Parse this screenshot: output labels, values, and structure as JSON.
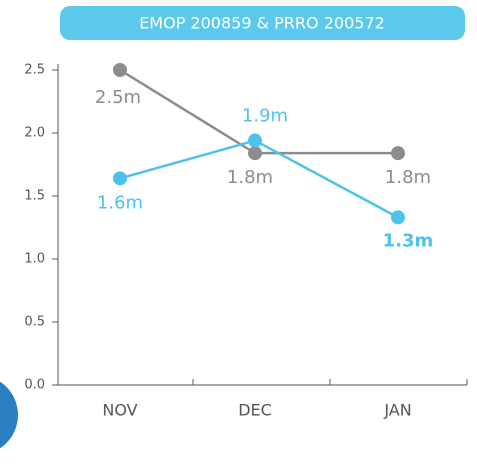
{
  "chart_data": {
    "type": "line",
    "title": "EMOP 200859 & PRRO 200572",
    "categories": [
      "NOV",
      "DEC",
      "JAN"
    ],
    "series": [
      {
        "color": "#8c8c8c",
        "values": [
          2.5,
          1.84,
          1.84
        ],
        "value_labels": [
          "2.5m",
          "1.8m",
          "1.8m"
        ]
      },
      {
        "color": "#4dc3ec",
        "values": [
          1.64,
          1.94,
          1.33
        ],
        "value_labels": [
          "1.6m",
          "1.9m",
          "1.3m"
        ]
      }
    ],
    "ylim": [
      0,
      2.5
    ],
    "yticks": [
      {
        "value": 0,
        "label": "0.0"
      },
      0.5,
      {
        "value": 1,
        "label": "1.0"
      },
      1.5,
      {
        "value": 2,
        "label": "2.0"
      },
      2.5
    ]
  }
}
